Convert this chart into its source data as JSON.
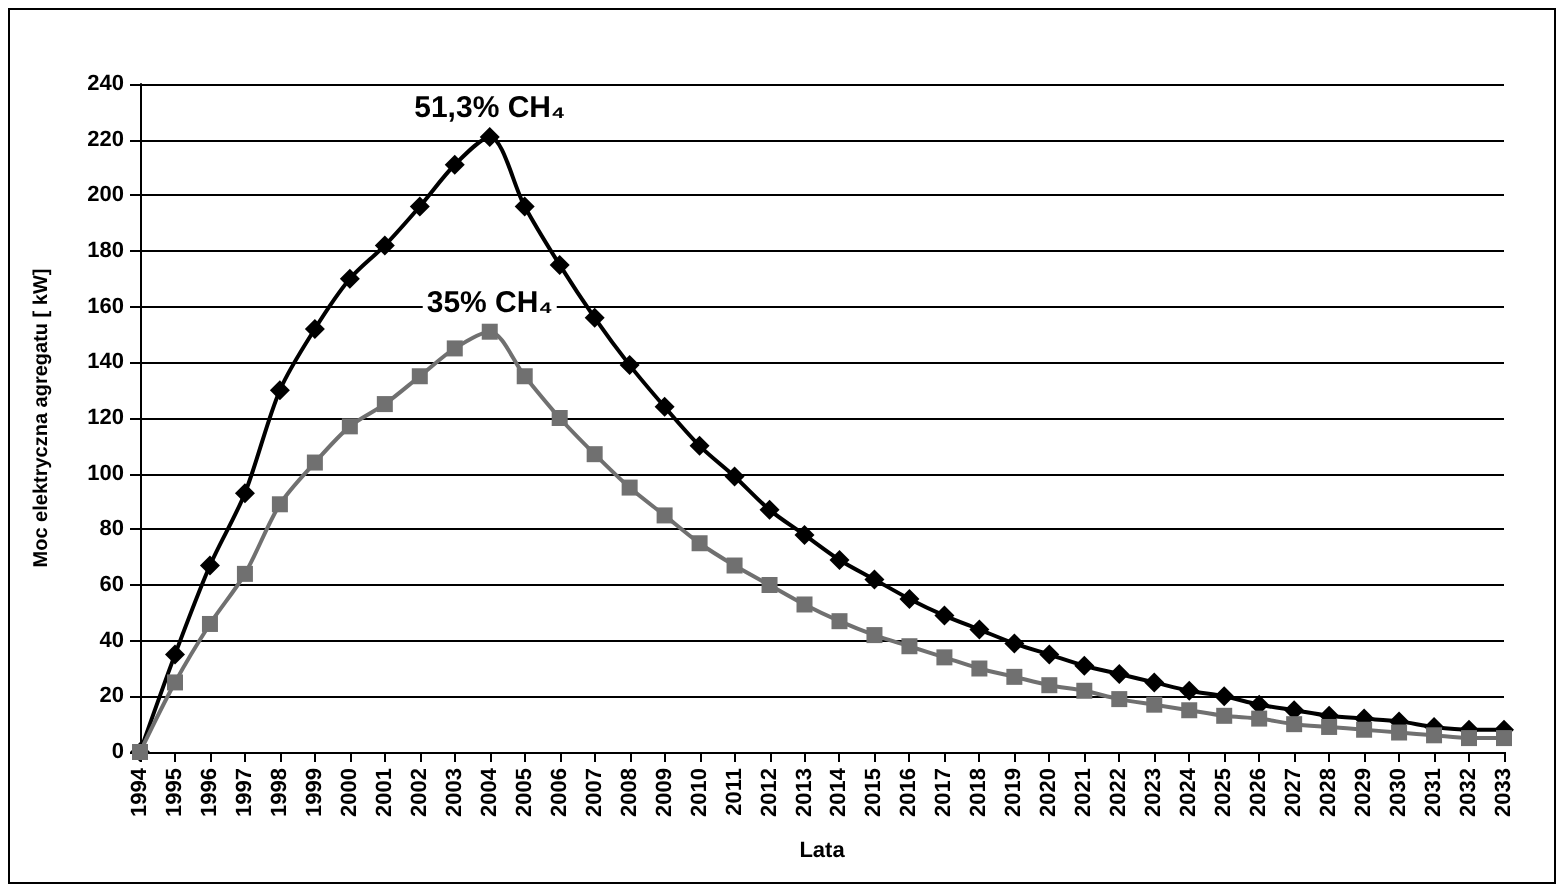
{
  "chart_data": {
    "type": "line",
    "xlabel": "Lata",
    "ylabel": "Moc elektryczna agregatu [ kW]",
    "categories": [
      "1994",
      "1995",
      "1996",
      "1997",
      "1998",
      "1999",
      "2000",
      "2001",
      "2002",
      "2003",
      "2004",
      "2005",
      "2006",
      "2007",
      "2008",
      "2009",
      "2010",
      "2011",
      "2012",
      "2013",
      "2014",
      "2015",
      "2016",
      "2017",
      "2018",
      "2019",
      "2020",
      "2021",
      "2022",
      "2023",
      "2024",
      "2025",
      "2026",
      "2027",
      "2028",
      "2029",
      "2030",
      "2031",
      "2032",
      "2033"
    ],
    "series": [
      {
        "color": "#000000",
        "marker": "diamond",
        "values": [
          0,
          35,
          67,
          93,
          130,
          152,
          170,
          182,
          196,
          211,
          221,
          196,
          175,
          156,
          139,
          124,
          110,
          99,
          87,
          78,
          69,
          62,
          55,
          49,
          44,
          39,
          35,
          31,
          28,
          25,
          22,
          20,
          17,
          15,
          13,
          12,
          11,
          9,
          8,
          8
        ]
      },
      {
        "color": "#707070",
        "marker": "square",
        "values": [
          0,
          25,
          46,
          64,
          89,
          104,
          117,
          125,
          135,
          145,
          151,
          135,
          120,
          107,
          95,
          85,
          75,
          67,
          60,
          53,
          47,
          42,
          38,
          34,
          30,
          27,
          24,
          22,
          19,
          17,
          15,
          13,
          12,
          10,
          9,
          8,
          7,
          6,
          5,
          5
        ]
      }
    ],
    "annotations": [
      {
        "text": "51,3% CH₄",
        "x": "2004",
        "y": 221
      },
      {
        "text": "35% CH₄",
        "x": "2004",
        "y": 151
      }
    ],
    "ylim": [
      0,
      240
    ],
    "yticks": [
      0,
      20,
      40,
      60,
      80,
      100,
      120,
      140,
      160,
      180,
      200,
      220,
      240
    ],
    "grid": "y",
    "line_style": "solid"
  }
}
